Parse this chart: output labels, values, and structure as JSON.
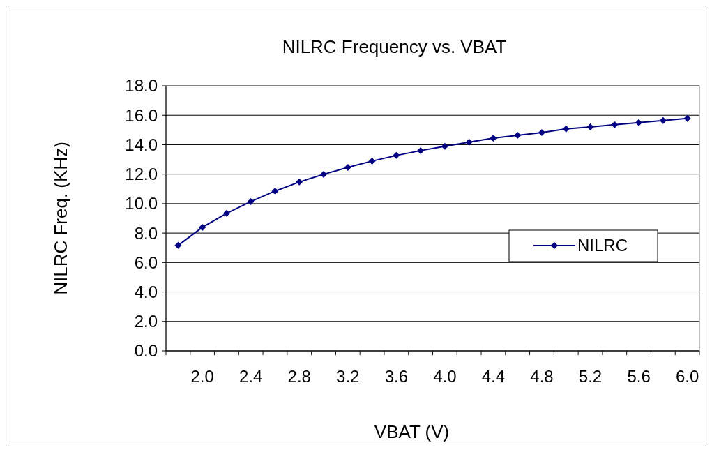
{
  "chart_data": {
    "type": "line",
    "title": "NILRC Frequency vs. VBAT",
    "xlabel": "VBAT (V)",
    "ylabel": "NILRC Freq. (KHz)",
    "categories": [
      null,
      "2.0",
      null,
      "2.4",
      null,
      "2.8",
      null,
      "3.2",
      null,
      "3.6",
      null,
      "4.0",
      null,
      "4.4",
      null,
      "4.8",
      null,
      "5.2",
      null,
      "5.6",
      null,
      "6.0"
    ],
    "series": [
      {
        "name": "NILRC",
        "color": "#000080",
        "values": [
          7.16,
          8.39,
          9.34,
          10.14,
          10.85,
          11.47,
          11.99,
          12.46,
          12.89,
          13.27,
          13.6,
          13.89,
          14.17,
          14.45,
          14.64,
          14.83,
          15.07,
          15.21,
          15.36,
          15.5,
          15.64,
          15.78
        ]
      }
    ],
    "ylim": [
      0,
      18
    ],
    "yticks": [
      {
        "value": 0,
        "label": "0.0"
      },
      {
        "value": 2,
        "label": "2.0"
      },
      {
        "value": 4,
        "label": "4.0"
      },
      {
        "value": 6,
        "label": "6.0"
      },
      {
        "value": 8,
        "label": "8.0"
      },
      {
        "value": 10,
        "label": "10.0"
      },
      {
        "value": 12,
        "label": "12.0"
      },
      {
        "value": 14,
        "label": "14.0"
      },
      {
        "value": 16,
        "label": "16.0"
      },
      {
        "value": 18,
        "label": "18.0"
      }
    ],
    "grid": "y",
    "legend": "right",
    "marker": "diamond",
    "line_style": "solid"
  }
}
